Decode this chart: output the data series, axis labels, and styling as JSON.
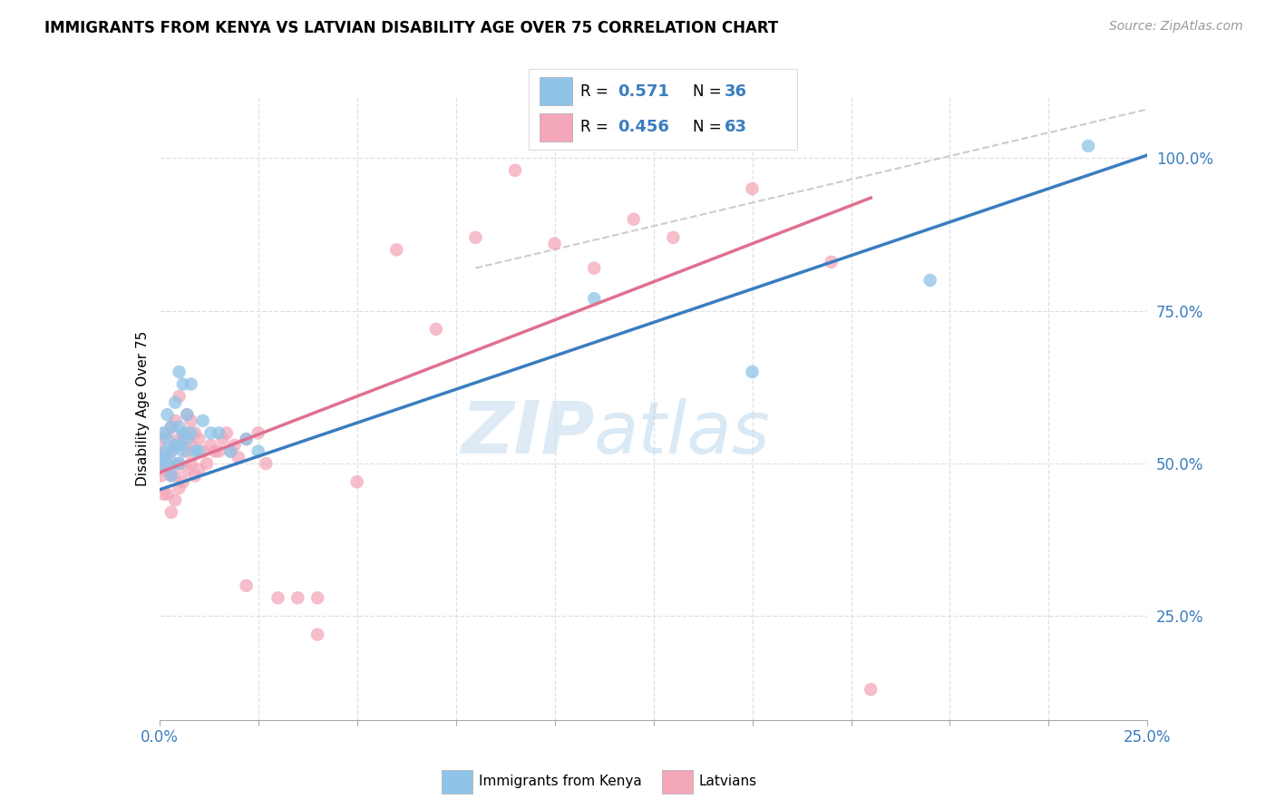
{
  "title": "IMMIGRANTS FROM KENYA VS LATVIAN DISABILITY AGE OVER 75 CORRELATION CHART",
  "source": "Source: ZipAtlas.com",
  "ylabel": "Disability Age Over 75",
  "xlim": [
    0.0,
    0.25
  ],
  "ylim": [
    0.08,
    1.1
  ],
  "yticks_right": [
    0.25,
    0.5,
    0.75,
    1.0
  ],
  "ytick_right_labels": [
    "25.0%",
    "50.0%",
    "75.0%",
    "100.0%"
  ],
  "legend_r1": "0.571",
  "legend_n1": "36",
  "legend_r2": "0.456",
  "legend_n2": "63",
  "legend_label1": "Immigrants from Kenya",
  "legend_label2": "Latvians",
  "color_kenya": "#8fc4e8",
  "color_latvians": "#f4a7b9",
  "watermark_zip": "ZIP",
  "watermark_atlas": "atlas",
  "kenya_x": [
    0.0005,
    0.001,
    0.001,
    0.0015,
    0.002,
    0.002,
    0.002,
    0.003,
    0.003,
    0.003,
    0.004,
    0.004,
    0.004,
    0.005,
    0.005,
    0.005,
    0.005,
    0.006,
    0.006,
    0.006,
    0.007,
    0.007,
    0.008,
    0.008,
    0.009,
    0.01,
    0.011,
    0.013,
    0.015,
    0.018,
    0.022,
    0.025,
    0.11,
    0.15,
    0.195,
    0.235
  ],
  "kenya_y": [
    0.5,
    0.51,
    0.55,
    0.52,
    0.5,
    0.54,
    0.58,
    0.48,
    0.52,
    0.56,
    0.5,
    0.53,
    0.6,
    0.5,
    0.53,
    0.56,
    0.65,
    0.52,
    0.55,
    0.63,
    0.54,
    0.58,
    0.55,
    0.63,
    0.52,
    0.52,
    0.57,
    0.55,
    0.55,
    0.52,
    0.54,
    0.52,
    0.77,
    0.65,
    0.8,
    1.02
  ],
  "latvians_x": [
    0.0005,
    0.0005,
    0.001,
    0.001,
    0.001,
    0.002,
    0.002,
    0.002,
    0.003,
    0.003,
    0.003,
    0.003,
    0.004,
    0.004,
    0.004,
    0.004,
    0.005,
    0.005,
    0.005,
    0.005,
    0.006,
    0.006,
    0.007,
    0.007,
    0.007,
    0.007,
    0.008,
    0.008,
    0.008,
    0.009,
    0.009,
    0.01,
    0.01,
    0.011,
    0.012,
    0.013,
    0.014,
    0.015,
    0.016,
    0.017,
    0.018,
    0.019,
    0.02,
    0.022,
    0.025,
    0.027,
    0.03,
    0.035,
    0.04,
    0.05,
    0.06,
    0.07,
    0.08,
    0.09,
    0.1,
    0.11,
    0.12,
    0.13,
    0.15,
    0.17,
    0.18,
    0.022,
    0.04
  ],
  "latvians_y": [
    0.48,
    0.52,
    0.45,
    0.49,
    0.54,
    0.45,
    0.5,
    0.55,
    0.42,
    0.48,
    0.52,
    0.56,
    0.44,
    0.48,
    0.53,
    0.57,
    0.46,
    0.5,
    0.54,
    0.61,
    0.47,
    0.54,
    0.49,
    0.52,
    0.55,
    0.58,
    0.5,
    0.53,
    0.57,
    0.48,
    0.55,
    0.49,
    0.54,
    0.52,
    0.5,
    0.53,
    0.52,
    0.52,
    0.54,
    0.55,
    0.52,
    0.53,
    0.51,
    0.54,
    0.55,
    0.5,
    0.28,
    0.28,
    0.28,
    0.47,
    0.85,
    0.72,
    0.87,
    0.98,
    0.86,
    0.82,
    0.9,
    0.87,
    0.95,
    0.83,
    0.13,
    0.3,
    0.22
  ],
  "ref_line_x": [
    0.08,
    0.25
  ],
  "ref_line_y": [
    0.82,
    1.08
  ],
  "trend_kenya_x0": 0.0,
  "trend_kenya_y0": 0.457,
  "trend_kenya_x1": 0.25,
  "trend_kenya_y1": 1.005,
  "trend_latv_x0": 0.0,
  "trend_latv_y0": 0.485,
  "trend_latv_x1": 0.18,
  "trend_latv_y1": 0.935
}
